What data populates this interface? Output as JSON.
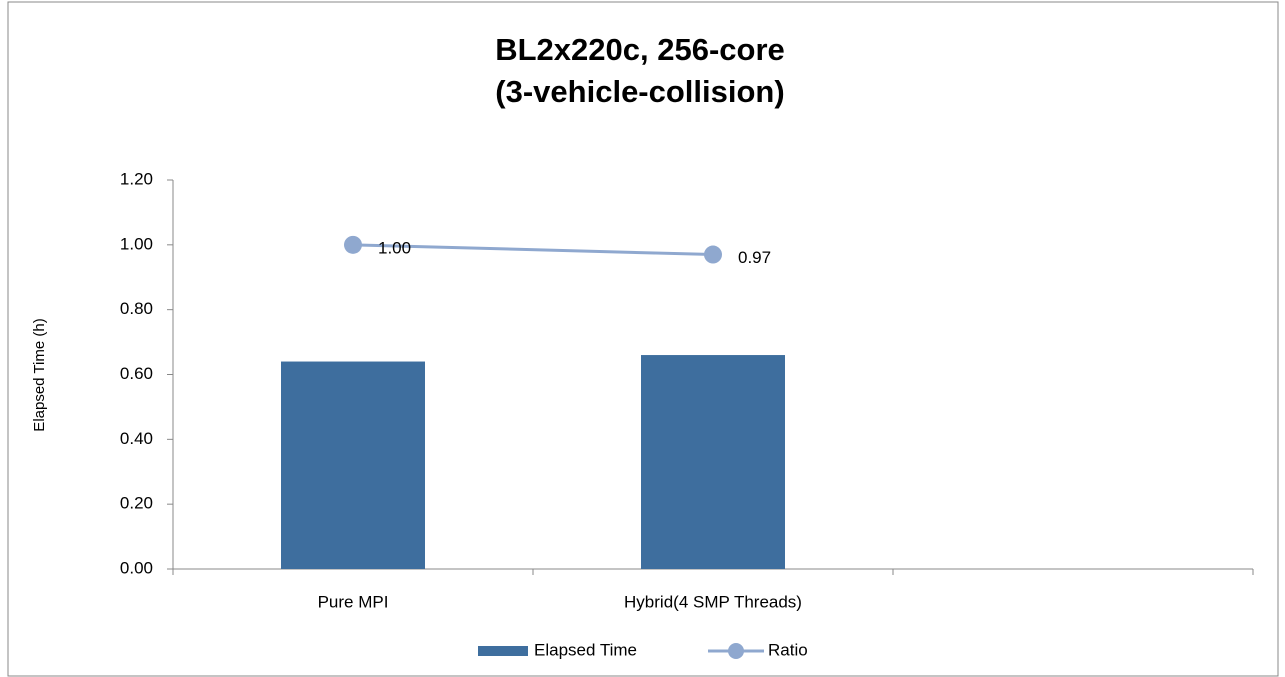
{
  "chart_data": {
    "type": "bar-line",
    "title": [
      "BL2x220c, 256-core",
      "(3-vehicle-collision)"
    ],
    "y_label": "Elapsed Time (h)",
    "categories": [
      "Pure MPI",
      "Hybrid(4 SMP Threads)",
      null
    ],
    "series": [
      {
        "name": "Elapsed Time",
        "type": "bar",
        "color": "#3e6e9e",
        "values": [
          0.64,
          0.66,
          null
        ]
      },
      {
        "name": "Ratio",
        "type": "line",
        "color": "#8fa8cf",
        "values": [
          1.0,
          0.97,
          null
        ],
        "value_labels": [
          "1.00",
          "0.97",
          null
        ]
      }
    ],
    "ylim": [
      0,
      1.2
    ],
    "yticks": [
      {
        "value": 0,
        "label": "0.00"
      },
      {
        "value": 0.2,
        "label": "0.20"
      },
      {
        "value": 0.4,
        "label": "0.40"
      },
      {
        "value": 0.6,
        "label": "0.60"
      },
      {
        "value": 0.8,
        "label": "0.80"
      },
      {
        "value": 1.0,
        "label": "1.00"
      },
      {
        "value": 1.2,
        "label": "1.20"
      }
    ],
    "grid": false,
    "legend": "bottom"
  }
}
